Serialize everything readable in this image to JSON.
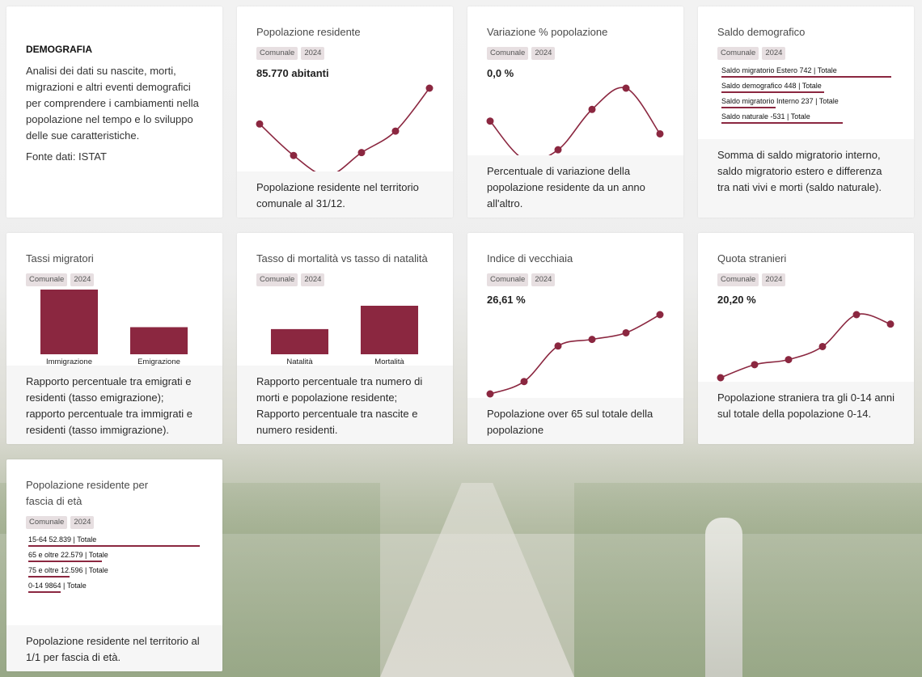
{
  "accent_color": "#8b2740",
  "intro": {
    "heading": "DEMOGRAFIA",
    "description": "Analisi dei dati su nascite, morti, migrazioni e altri eventi demografici per comprendere i cambiamenti nella popolazione nel tempo e lo sviluppo delle sue caratteristiche.",
    "source": "Fonte dati: ISTAT"
  },
  "cards": {
    "popolazione": {
      "title": "Popolazione residente",
      "tag_scope": "Comunale",
      "tag_year": "2024",
      "value": "85.770 abitanti",
      "description": "Popolazione residente nel territorio comunale al 31/12."
    },
    "variazione": {
      "title": "Variazione % popolazione",
      "tag_scope": "Comunale",
      "tag_year": "2024",
      "value": "0,0 %",
      "description": "Percentuale di variazione della popolazione residente da un anno all'altro."
    },
    "saldo": {
      "title": "Saldo demografico",
      "tag_scope": "Comunale",
      "tag_year": "2024",
      "rows": [
        {
          "label": "Saldo migratorio Estero 742 | Totale",
          "value": 742
        },
        {
          "label": "Saldo demografico 448 | Totale",
          "value": 448
        },
        {
          "label": "Saldo migratorio Interno 237 | Totale",
          "value": 237
        },
        {
          "label": "Saldo naturale -531 | Totale",
          "value": -531
        }
      ],
      "description": "Somma di saldo migratorio interno, saldo migratorio estero e differenza tra nati vivi e morti (saldo naturale)."
    },
    "tassi": {
      "title": "Tassi migratori",
      "tag_scope": "Comunale",
      "tag_year": "2024",
      "description": "Rapporto percentuale tra emigrati e residenti (tasso emigrazione); rapporto percentuale tra immigrati e residenti (tasso immigrazione)."
    },
    "mortalita": {
      "title": "Tasso di mortalità vs tasso di natalità",
      "tag_scope": "Comunale",
      "tag_year": "2024",
      "description": "Rapporto percentuale tra numero di morti e popolazione residente; Rapporto percentuale tra nascite e numero residenti."
    },
    "vecchiaia": {
      "title": "Indice di vecchiaia",
      "tag_scope": "Comunale",
      "tag_year": "2024",
      "value": "26,61 %",
      "description": "Popolazione over 65 sul totale della popolazione"
    },
    "stranieri": {
      "title": "Quota stranieri",
      "tag_scope": "Comunale",
      "tag_year": "2024",
      "value": "20,20 %",
      "description": "Popolazione straniera tra gli 0-14 anni sul totale della popolazione 0-14."
    },
    "fasce": {
      "title": "Popolazione residente per fascia di età",
      "tag_scope": "Comunale",
      "tag_year": "2024",
      "rows": [
        {
          "label": "15-64 52.839 | Totale",
          "value": 52839
        },
        {
          "label": "65 e oltre 22.579 | Totale",
          "value": 22579
        },
        {
          "label": "75 e oltre 12.596 | Totale",
          "value": 12596
        },
        {
          "label": "0-14 9864 | Totale",
          "value": 9864
        }
      ],
      "description": "Popolazione residente nel territorio al 1/1 per fascia di età."
    }
  },
  "chart_data": [
    {
      "id": "popolazione",
      "type": "line",
      "values": [
        82,
        60,
        46,
        62,
        77,
        107
      ]
    },
    {
      "id": "variazione",
      "type": "line",
      "values": [
        60,
        24,
        33,
        71,
        91,
        48
      ]
    },
    {
      "id": "tassi",
      "type": "bar",
      "categories": [
        "Immigrazione",
        "Emigrazione"
      ],
      "values": [
        74,
        31
      ]
    },
    {
      "id": "mortalita",
      "type": "bar",
      "categories": [
        "Natalità",
        "Mortalità"
      ],
      "values": [
        28,
        54
      ]
    },
    {
      "id": "vecchiaia",
      "type": "line",
      "values": [
        4,
        19,
        62,
        70,
        78,
        100
      ]
    },
    {
      "id": "stranieri",
      "type": "line",
      "values": [
        13,
        31,
        38,
        56,
        100,
        87
      ]
    }
  ]
}
